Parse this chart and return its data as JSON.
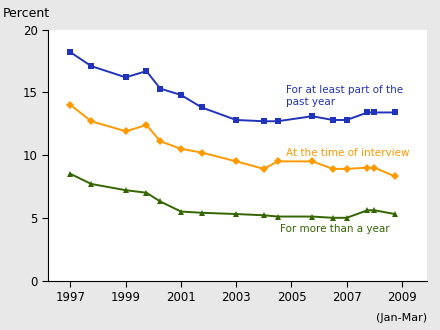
{
  "blue_x": [
    1997,
    1997.75,
    1999,
    1999.75,
    2000.25,
    2001,
    2001.75,
    2003,
    2004,
    2004.5,
    2005.75,
    2006.5,
    2007,
    2007.75,
    2008,
    2008.75
  ],
  "blue_y": [
    18.2,
    17.1,
    16.2,
    16.7,
    15.3,
    14.8,
    13.8,
    12.8,
    12.7,
    12.7,
    13.1,
    12.8,
    12.8,
    13.4,
    13.4,
    13.4
  ],
  "orange_x": [
    1997,
    1997.75,
    1999,
    1999.75,
    2000.25,
    2001,
    2001.75,
    2003,
    2004,
    2004.5,
    2005.75,
    2006.5,
    2007,
    2007.75,
    2008,
    2008.75
  ],
  "orange_y": [
    14.0,
    12.7,
    11.9,
    12.4,
    11.1,
    10.5,
    10.2,
    9.5,
    8.9,
    9.5,
    9.5,
    8.9,
    8.9,
    9.0,
    9.0,
    8.3
  ],
  "green_x": [
    1997,
    1997.75,
    1999,
    1999.75,
    2000.25,
    2001,
    2001.75,
    2003,
    2004,
    2004.5,
    2005.75,
    2006.5,
    2007,
    2007.75,
    2008,
    2008.75
  ],
  "green_y": [
    8.5,
    7.7,
    7.2,
    7.0,
    6.3,
    5.5,
    5.4,
    5.3,
    5.2,
    5.1,
    5.1,
    5.0,
    5.0,
    5.6,
    5.6,
    5.3
  ],
  "blue_color": "#2233BB",
  "orange_color": "#FF9900",
  "green_color": "#336600",
  "blue_label": "For at least part of the\npast year",
  "orange_label": "At the time of interview",
  "green_label": "For more than a year",
  "percent_label": "Percent",
  "jan_mar_label": "(Jan-Mar)",
  "ylim": [
    0,
    20
  ],
  "yticks": [
    0,
    5,
    10,
    15,
    20
  ],
  "xticks": [
    1997,
    1999,
    2001,
    2003,
    2005,
    2007,
    2009
  ],
  "xlim": [
    1996.2,
    2009.9
  ],
  "bg_outer": "#e8e8e8",
  "bg_inner": "#ffffff"
}
